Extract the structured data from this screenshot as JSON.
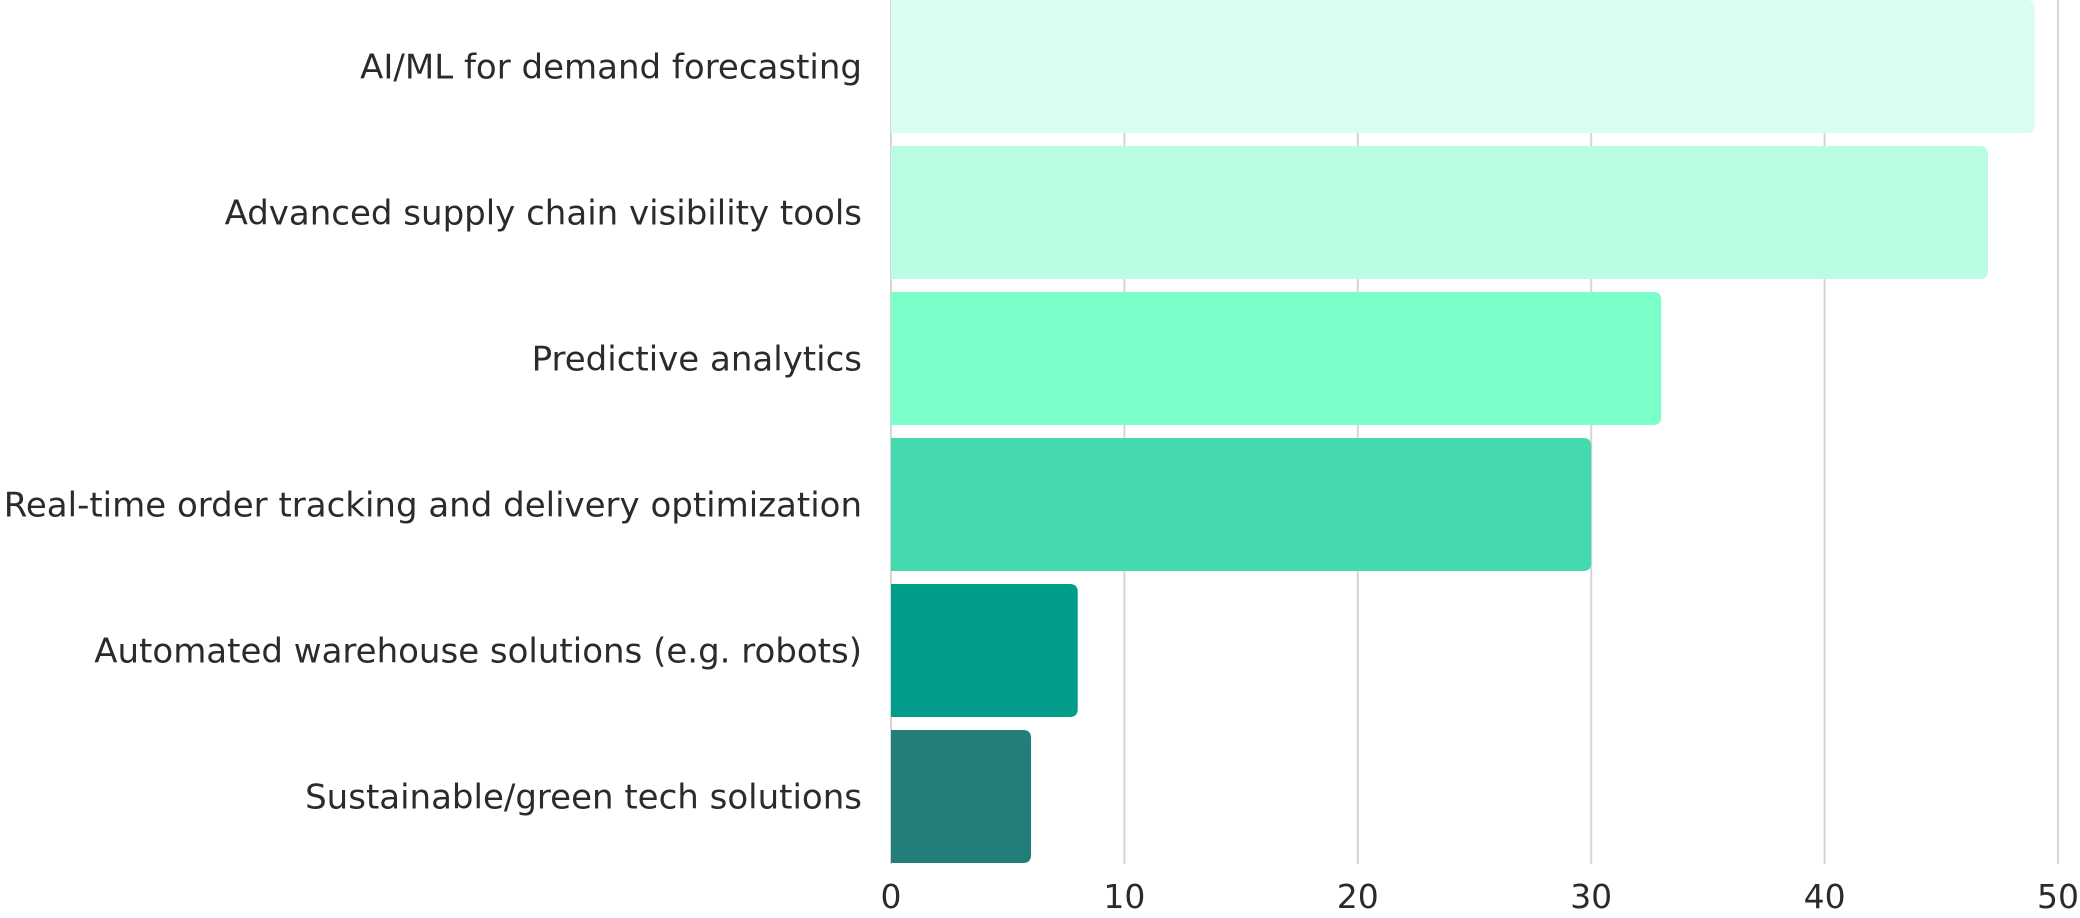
{
  "chart_data": {
    "type": "bar",
    "orientation": "horizontal",
    "title": "",
    "xlabel": "",
    "ylabel": "",
    "categories": [
      "AI/ML for demand forecasting",
      "Advanced supply chain visibility tools",
      "Predictive analytics",
      "Real-time order tracking and delivery optimization",
      "Automated warehouse solutions (e.g. robots)",
      "Sustainable/green tech solutions"
    ],
    "values": [
      49,
      47,
      33,
      30,
      8,
      6
    ],
    "colors": [
      "#d9fdee",
      "#bbfde2",
      "#7bffc8",
      "#45d9b0",
      "#009e8a",
      "#237e7a"
    ],
    "xlim": [
      0,
      50
    ],
    "xticks": [
      "0",
      "10",
      "20",
      "30",
      "40",
      "50"
    ],
    "grid": true,
    "legend": "none"
  }
}
